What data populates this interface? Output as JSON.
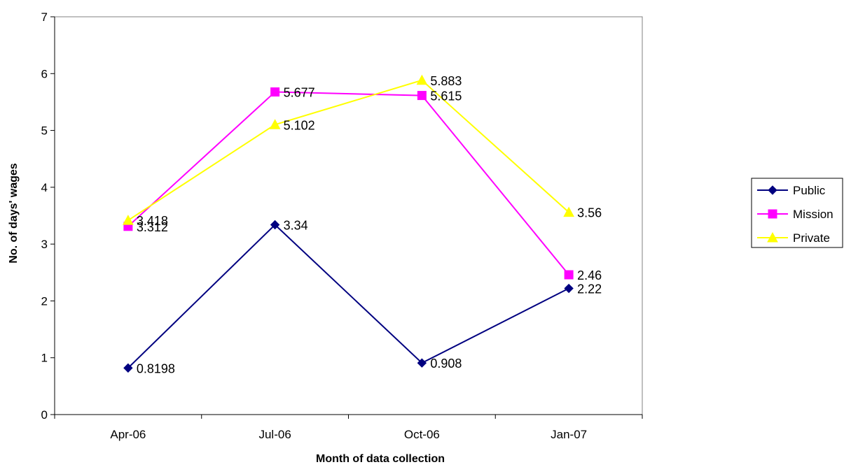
{
  "chart_data": {
    "type": "line",
    "categories": [
      "Apr-06",
      "Jul-06",
      "Oct-06",
      "Jan-07"
    ],
    "xlabel": "Month of data collection",
    "ylabel": "No. of days' wages",
    "ylim": [
      0,
      7
    ],
    "yticks": [
      "0",
      "1",
      "2",
      "3",
      "4",
      "5",
      "6",
      "7"
    ],
    "legend_position": "right",
    "grid": false,
    "series": [
      {
        "name": "Public",
        "values": [
          0.8198,
          3.34,
          0.908,
          2.22
        ],
        "labels": [
          "0.8198",
          "3.34",
          "0.908",
          "2.22"
        ],
        "color": "#000080",
        "marker": "diamond"
      },
      {
        "name": "Mission",
        "values": [
          3.312,
          5.677,
          5.615,
          2.46
        ],
        "labels": [
          "3.312",
          "5.677",
          "5.615",
          "2.46"
        ],
        "color": "#FF00FF",
        "marker": "square"
      },
      {
        "name": "Private",
        "values": [
          3.418,
          5.102,
          5.883,
          3.56
        ],
        "labels": [
          "3.418",
          "5.102",
          "5.883",
          "3.56"
        ],
        "color": "#FFFF00",
        "marker": "triangle"
      }
    ]
  }
}
